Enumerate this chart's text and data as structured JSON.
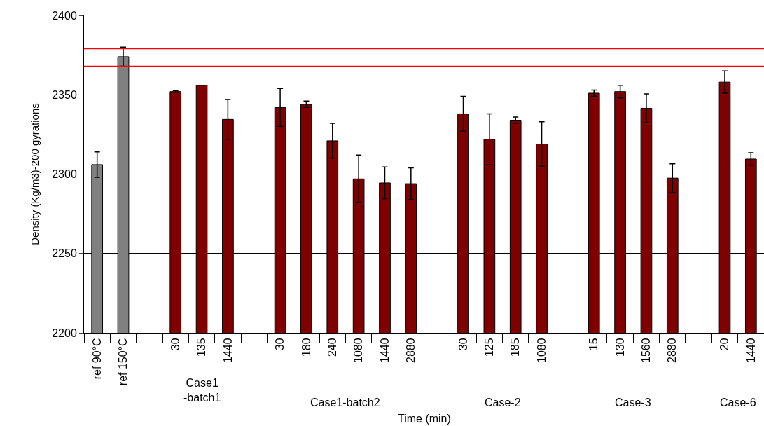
{
  "chart_data": {
    "type": "bar",
    "xlabel": "Time (min)",
    "ylabel": "Density (Kg/m3)-200 gyrations",
    "categories": [
      "ref 90°C",
      "ref 150°C",
      null,
      "30",
      "135",
      "1440",
      null,
      "30",
      "180",
      "240",
      "1080",
      "1440",
      "2880",
      null,
      "30",
      "125",
      "185",
      "1080",
      null,
      "15",
      "130",
      "1560",
      "2880",
      null,
      "20",
      "1440"
    ],
    "values": [
      2306,
      2374,
      null,
      2352,
      2356,
      2334.5,
      null,
      2342,
      2344,
      2321,
      2297,
      2294.5,
      2294,
      null,
      2338,
      2322,
      2334,
      2319,
      null,
      2351,
      2352,
      2341.5,
      2297.5,
      null,
      2358,
      2309.5
    ],
    "errors": [
      8,
      6,
      null,
      0.5,
      null,
      12.5,
      null,
      12,
      2,
      11,
      15,
      10,
      10,
      null,
      11,
      16,
      2,
      14,
      null,
      2,
      4,
      9,
      9,
      null,
      7,
      4
    ],
    "colors": [
      "#808080",
      "#808080",
      null,
      "#800000",
      "#800000",
      "#800000",
      null,
      "#800000",
      "#800000",
      "#800000",
      "#800000",
      "#800000",
      "#800000",
      null,
      "#800000",
      "#800000",
      "#800000",
      "#800000",
      null,
      "#800000",
      "#800000",
      "#800000",
      "#800000",
      null,
      "#800000",
      "#800000"
    ],
    "ylim": [
      2200,
      2400
    ],
    "yticks": [
      2200,
      2250,
      2300,
      2350,
      2400
    ],
    "grid": "y",
    "ref_lines": [
      {
        "axis": "y",
        "value": 2379,
        "color": "#ff0000"
      },
      {
        "axis": "y",
        "value": 2368,
        "color": "#ff0000"
      }
    ],
    "annotations": [
      "Case1\n-batch1",
      "Case1-batch2",
      "Case-2",
      "Case-3",
      "Case-6"
    ]
  }
}
